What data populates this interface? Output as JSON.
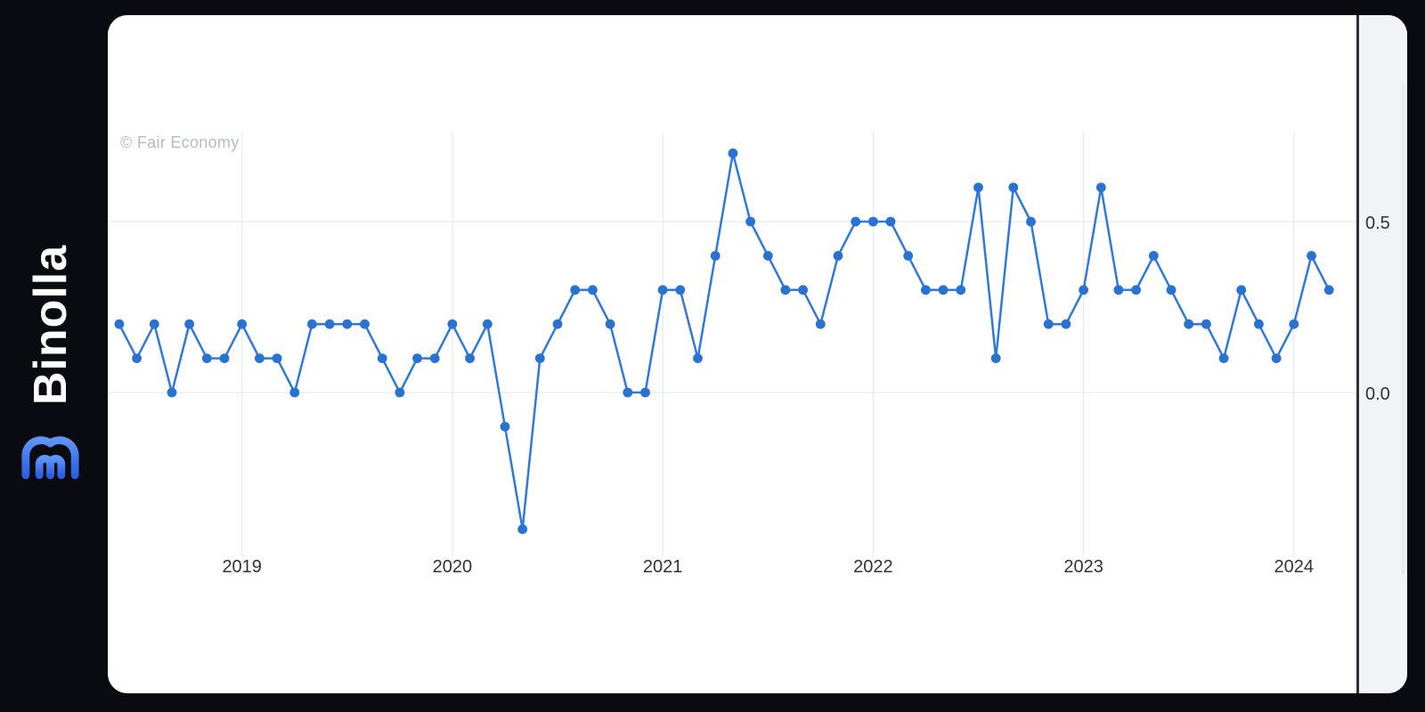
{
  "brand": {
    "name": "Binolla",
    "logo_icon": "binolla-m-logo",
    "logo_gradient_top": "#5f93f4",
    "logo_gradient_bottom": "#2b5fe3"
  },
  "chart_data": {
    "type": "line",
    "title": "",
    "source_watermark": "© Fair Economy",
    "frequency": "monthly",
    "start_month": "2018-06",
    "end_month": "2024-03",
    "values": [
      0.2,
      0.1,
      0.2,
      0.0,
      0.2,
      0.1,
      0.1,
      0.2,
      0.1,
      0.1,
      0.0,
      0.2,
      0.2,
      0.2,
      0.2,
      0.1,
      0.0,
      0.1,
      0.1,
      0.2,
      0.1,
      0.2,
      -0.1,
      -0.4,
      0.1,
      0.2,
      0.3,
      0.3,
      0.2,
      0.0,
      0.0,
      0.3,
      0.3,
      0.1,
      0.4,
      0.7,
      0.5,
      0.4,
      0.3,
      0.3,
      0.2,
      0.4,
      0.5,
      0.5,
      0.5,
      0.4,
      0.3,
      0.3,
      0.3,
      0.6,
      0.1,
      0.6,
      0.5,
      0.2,
      0.2,
      0.3,
      0.6,
      0.3,
      0.3,
      0.4,
      0.3,
      0.2,
      0.2,
      0.1,
      0.3,
      0.2,
      0.1,
      0.2,
      0.4,
      0.3
    ],
    "x_tick_labels": [
      "2019",
      "2020",
      "2021",
      "2022",
      "2023",
      "2024"
    ],
    "y_ticks": [
      {
        "label": "0.5",
        "value": 0.5
      },
      {
        "label": "0.0",
        "value": 0.0
      }
    ],
    "ylim": [
      -0.45,
      0.78
    ],
    "grid": true,
    "legend": false,
    "line_color": "#3079d9",
    "marker_color": "#2a72d2",
    "gridline_color": "#e7eaef"
  }
}
